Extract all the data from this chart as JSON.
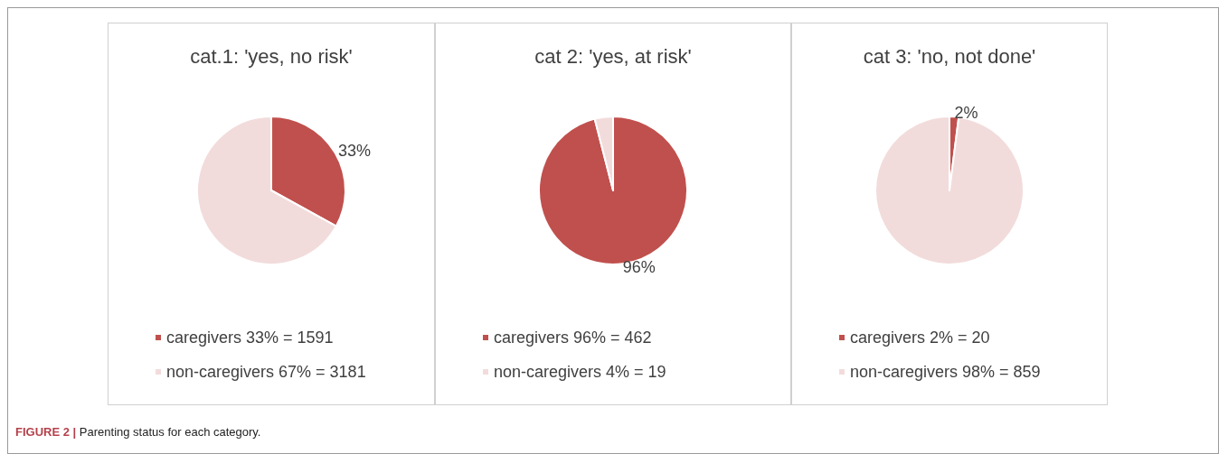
{
  "chart_data": [
    {
      "type": "pie",
      "title": "cat.1: 'yes, no risk'",
      "categories": [
        "caregivers 33% = 1591",
        "non-caregivers 67% = 3181"
      ],
      "values": [
        33,
        67
      ],
      "colors": [
        "#c0504d",
        "#f2dcdb"
      ],
      "value_labels": [
        "33%",
        null
      ],
      "legend": "bottom",
      "annotations": [
        "FIGURE 2 | Parenting status for each category."
      ]
    },
    {
      "type": "pie",
      "title": "cat 2: 'yes, at risk'",
      "categories": [
        "caregivers 96% = 462",
        "non-caregivers 4% = 19"
      ],
      "values": [
        96,
        4
      ],
      "colors": [
        "#c0504d",
        "#f2dcdb"
      ],
      "value_labels": [
        "96%",
        null
      ],
      "legend": "bottom"
    },
    {
      "type": "pie",
      "title": "cat 3: 'no, not done'",
      "categories": [
        "caregivers 2% = 20",
        "non-caregivers 98% = 859"
      ],
      "values": [
        2,
        98
      ],
      "colors": [
        "#c0504d",
        "#f2dcdb"
      ],
      "value_labels": [
        "2%",
        null
      ],
      "legend": "bottom"
    }
  ]
}
